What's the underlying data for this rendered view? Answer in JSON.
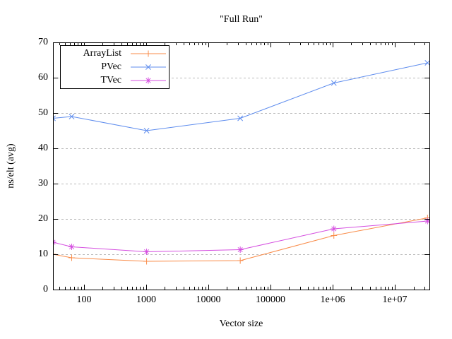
{
  "chart_data": {
    "type": "line",
    "title": "\"Full Run\"",
    "xlabel": "Vector size",
    "ylabel": "ns/elt (avg)",
    "x_scale": "log",
    "xlim": [
      32,
      36000000
    ],
    "ylim": [
      0,
      70
    ],
    "grid": "horizontal-dashed",
    "legend_position": "top-left-inside",
    "x": [
      32,
      64,
      1024,
      32768,
      1048576,
      33554432
    ],
    "series": [
      {
        "name": "ArrayList",
        "color": "#f98b48",
        "marker": "plus",
        "values": [
          10.0,
          9.0,
          8.0,
          8.2,
          15.3,
          20.3
        ]
      },
      {
        "name": "PVec",
        "color": "#5f8dee",
        "marker": "cross",
        "values": [
          48.5,
          49.0,
          45.0,
          48.5,
          58.5,
          64.2
        ]
      },
      {
        "name": "TVec",
        "color": "#d54fe0",
        "marker": "star",
        "values": [
          13.4,
          12.1,
          10.7,
          11.3,
          17.2,
          19.4
        ]
      }
    ],
    "x_ticks": [
      {
        "label": "100",
        "value": 100
      },
      {
        "label": "1000",
        "value": 1000
      },
      {
        "label": "10000",
        "value": 10000
      },
      {
        "label": "100000",
        "value": 100000
      },
      {
        "label": "1e+06",
        "value": 1000000
      },
      {
        "label": "1e+07",
        "value": 10000000
      }
    ],
    "y_ticks": [
      0,
      10,
      20,
      30,
      40,
      50,
      60,
      70
    ],
    "colors": {
      "axis": "#000000",
      "grid": "#b9b9b9",
      "background": "#ffffff",
      "text": "#000000"
    }
  }
}
